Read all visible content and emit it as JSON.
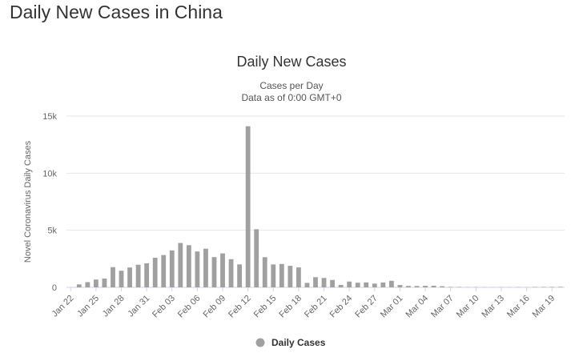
{
  "page": {
    "heading": "Daily New Cases in China"
  },
  "colors": {
    "bar": "#a0a0a0",
    "grid": "#e6e6e6",
    "axis": "#ccd6eb",
    "legend_marker": "#a0a0a0"
  },
  "chart_data": {
    "type": "bar",
    "title": "Daily New Cases",
    "subtitle_lines": [
      "Cases per Day",
      "Data as of 0:00 GMT+0"
    ],
    "ylabel": "Novel Coronavirus Daily Cases",
    "xlabel": "",
    "ylim": [
      0,
      15000
    ],
    "yticks": [
      0,
      5000,
      10000,
      15000
    ],
    "ytick_labels": [
      "0",
      "5k",
      "10k",
      "15k"
    ],
    "grid": true,
    "legend_position": "bottom-center",
    "categories": [
      "Jan 22",
      "Jan 23",
      "Jan 24",
      "Jan 25",
      "Jan 26",
      "Jan 27",
      "Jan 28",
      "Jan 29",
      "Jan 30",
      "Jan 31",
      "Feb 01",
      "Feb 02",
      "Feb 03",
      "Feb 04",
      "Feb 05",
      "Feb 06",
      "Feb 07",
      "Feb 08",
      "Feb 09",
      "Feb 10",
      "Feb 11",
      "Feb 12",
      "Feb 13",
      "Feb 14",
      "Feb 15",
      "Feb 16",
      "Feb 17",
      "Feb 18",
      "Feb 19",
      "Feb 20",
      "Feb 21",
      "Feb 22",
      "Feb 23",
      "Feb 24",
      "Feb 25",
      "Feb 26",
      "Feb 27",
      "Feb 28",
      "Feb 29",
      "Mar 01",
      "Mar 02",
      "Mar 03",
      "Mar 04",
      "Mar 05",
      "Mar 06",
      "Mar 07",
      "Mar 08",
      "Mar 09",
      "Mar 10",
      "Mar 11",
      "Mar 12",
      "Mar 13",
      "Mar 14",
      "Mar 15",
      "Mar 16",
      "Mar 17",
      "Mar 18",
      "Mar 19",
      "Mar 20"
    ],
    "xtick_labels": [
      "Jan 22",
      "Jan 25",
      "Jan 28",
      "Jan 31",
      "Feb 03",
      "Feb 06",
      "Feb 09",
      "Feb 12",
      "Feb 15",
      "Feb 18",
      "Feb 21",
      "Feb 24",
      "Feb 27",
      "Mar 01",
      "Mar 04",
      "Mar 07",
      "Mar 10",
      "Mar 13",
      "Mar 16",
      "Mar 19"
    ],
    "series": [
      {
        "name": "Daily Cases",
        "values": [
          0,
          259,
          457,
          688,
          769,
          1771,
          1459,
          1737,
          1982,
          2102,
          2590,
          2829,
          3235,
          3887,
          3694,
          3143,
          3385,
          2652,
          2973,
          2467,
          2015,
          14108,
          5090,
          2641,
          2008,
          2048,
          1886,
          1749,
          391,
          889,
          823,
          648,
          214,
          508,
          406,
          433,
          327,
          427,
          573,
          202,
          125,
          119,
          139,
          143,
          99,
          44,
          40,
          19,
          24,
          15,
          11,
          20,
          16,
          25,
          13,
          34,
          39,
          41,
          46
        ]
      }
    ]
  }
}
